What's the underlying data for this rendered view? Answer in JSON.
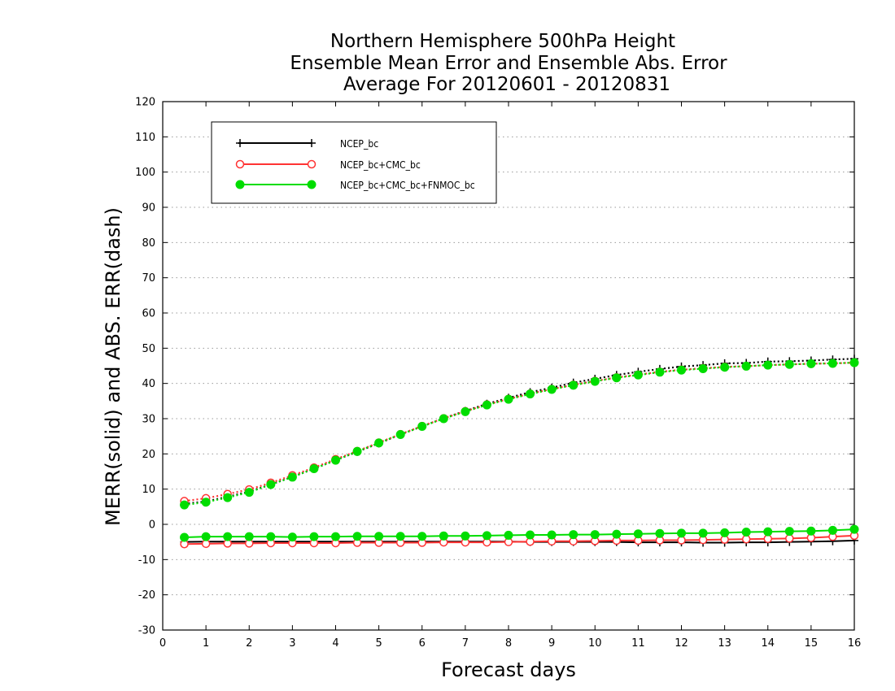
{
  "chart_data": {
    "type": "line",
    "title_lines": [
      "Northern Hemisphere 500hPa Height",
      "Ensemble Mean Error and Ensemble Abs. Error",
      "Average For 20120601 - 20120831"
    ],
    "xlabel": "Forecast days",
    "ylabel": "MERR(solid) and ABS. ERR(dash)",
    "xlim": [
      0,
      16
    ],
    "ylim": [
      -30,
      120
    ],
    "x_ticks": [
      0,
      1,
      2,
      3,
      4,
      5,
      6,
      7,
      8,
      9,
      10,
      11,
      12,
      13,
      14,
      15,
      16
    ],
    "y_ticks": [
      -30,
      -20,
      -10,
      0,
      10,
      20,
      30,
      40,
      50,
      60,
      70,
      80,
      90,
      100,
      110,
      120
    ],
    "grid": "horizontal dotted",
    "legend_position": "top-left",
    "x": [
      0.5,
      1,
      1.5,
      2,
      2.5,
      3,
      3.5,
      4,
      4.5,
      5,
      5.5,
      6,
      6.5,
      7,
      7.5,
      8,
      8.5,
      9,
      9.5,
      10,
      10.5,
      11,
      11.5,
      12,
      12.5,
      13,
      13.5,
      14,
      14.5,
      15,
      15.5,
      16
    ],
    "series": [
      {
        "name": "NCEP_bc",
        "color": "#000000",
        "marker": "plus",
        "merr": [
          -5.0,
          -4.9,
          -4.9,
          -4.9,
          -4.9,
          -4.9,
          -4.9,
          -4.9,
          -4.9,
          -4.9,
          -4.9,
          -4.9,
          -4.9,
          -4.9,
          -4.9,
          -4.9,
          -5.0,
          -5.0,
          -5.0,
          -5.0,
          -5.0,
          -5.1,
          -5.1,
          -5.1,
          -5.2,
          -5.2,
          -5.1,
          -5.1,
          -5.0,
          -4.9,
          -4.8,
          -4.6
        ],
        "abs_err": [
          5.8,
          6.5,
          7.8,
          9.3,
          11.3,
          13.5,
          15.8,
          18.2,
          20.6,
          23.0,
          25.5,
          27.8,
          30.1,
          32.2,
          34.2,
          35.9,
          37.5,
          38.8,
          40.2,
          41.3,
          42.4,
          43.3,
          44.1,
          44.8,
          45.2,
          45.7,
          45.8,
          46.2,
          46.3,
          46.5,
          46.8,
          47.0
        ]
      },
      {
        "name": "NCEP_bc+CMC_bc",
        "color": "#ff3333",
        "marker": "open-circle",
        "merr": [
          -5.6,
          -5.5,
          -5.4,
          -5.4,
          -5.3,
          -5.3,
          -5.3,
          -5.3,
          -5.2,
          -5.2,
          -5.2,
          -5.2,
          -5.1,
          -5.1,
          -5.1,
          -5.0,
          -4.9,
          -4.8,
          -4.8,
          -4.7,
          -4.6,
          -4.6,
          -4.5,
          -4.5,
          -4.4,
          -4.3,
          -4.2,
          -4.1,
          -4.0,
          -3.8,
          -3.5,
          -3.2
        ],
        "abs_err": [
          6.6,
          7.4,
          8.6,
          9.9,
          11.8,
          13.9,
          16.1,
          18.5,
          20.8,
          23.2,
          25.6,
          27.9,
          30.1,
          32.1,
          34.0,
          35.6,
          37.1,
          38.4,
          39.6,
          40.7,
          41.7,
          42.5,
          43.3,
          43.9,
          44.3,
          44.7,
          44.9,
          45.2,
          45.4,
          45.6,
          45.7,
          45.9
        ]
      },
      {
        "name": "NCEP_bc+CMC_bc+FNMOC_bc",
        "color": "#00dd00",
        "marker": "filled-circle",
        "merr": [
          -3.7,
          -3.5,
          -3.5,
          -3.5,
          -3.5,
          -3.6,
          -3.5,
          -3.5,
          -3.4,
          -3.4,
          -3.4,
          -3.4,
          -3.3,
          -3.3,
          -3.2,
          -3.1,
          -3.0,
          -3.0,
          -2.9,
          -2.9,
          -2.8,
          -2.7,
          -2.6,
          -2.5,
          -2.5,
          -2.4,
          -2.2,
          -2.1,
          -2.0,
          -1.9,
          -1.7,
          -1.4
        ],
        "abs_err": [
          5.5,
          6.3,
          7.6,
          9.1,
          11.3,
          13.4,
          15.8,
          18.2,
          20.7,
          23.1,
          25.5,
          27.8,
          30.0,
          32.0,
          33.9,
          35.5,
          37.0,
          38.3,
          39.5,
          40.6,
          41.6,
          42.4,
          43.2,
          43.8,
          44.2,
          44.6,
          44.9,
          45.2,
          45.4,
          45.6,
          45.7,
          45.9
        ]
      }
    ]
  }
}
